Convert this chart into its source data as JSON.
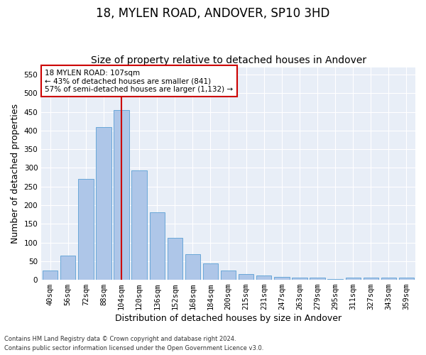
{
  "title": "18, MYLEN ROAD, ANDOVER, SP10 3HD",
  "subtitle": "Size of property relative to detached houses in Andover",
  "xlabel": "Distribution of detached houses by size in Andover",
  "ylabel": "Number of detached properties",
  "categories": [
    "40sqm",
    "56sqm",
    "72sqm",
    "88sqm",
    "104sqm",
    "120sqm",
    "136sqm",
    "152sqm",
    "168sqm",
    "184sqm",
    "200sqm",
    "215sqm",
    "231sqm",
    "247sqm",
    "263sqm",
    "279sqm",
    "295sqm",
    "311sqm",
    "327sqm",
    "343sqm",
    "359sqm"
  ],
  "values": [
    25,
    65,
    270,
    410,
    455,
    293,
    180,
    113,
    68,
    43,
    25,
    15,
    12,
    7,
    6,
    5,
    3,
    6,
    5,
    5,
    5
  ],
  "bar_color": "#aec6e8",
  "bar_edge_color": "#5a9fd4",
  "vline_index": 4,
  "vline_color": "#cc0000",
  "annotation_text": "18 MYLEN ROAD: 107sqm\n← 43% of detached houses are smaller (841)\n57% of semi-detached houses are larger (1,132) →",
  "annotation_box_color": "#ffffff",
  "annotation_box_edge": "#cc0000",
  "ylim": [
    0,
    570
  ],
  "yticks": [
    0,
    50,
    100,
    150,
    200,
    250,
    300,
    350,
    400,
    450,
    500,
    550
  ],
  "plot_bg_color": "#e8eef7",
  "footer_line1": "Contains HM Land Registry data © Crown copyright and database right 2024.",
  "footer_line2": "Contains public sector information licensed under the Open Government Licence v3.0.",
  "title_fontsize": 12,
  "subtitle_fontsize": 10,
  "xlabel_fontsize": 9,
  "ylabel_fontsize": 9,
  "tick_fontsize": 7.5
}
